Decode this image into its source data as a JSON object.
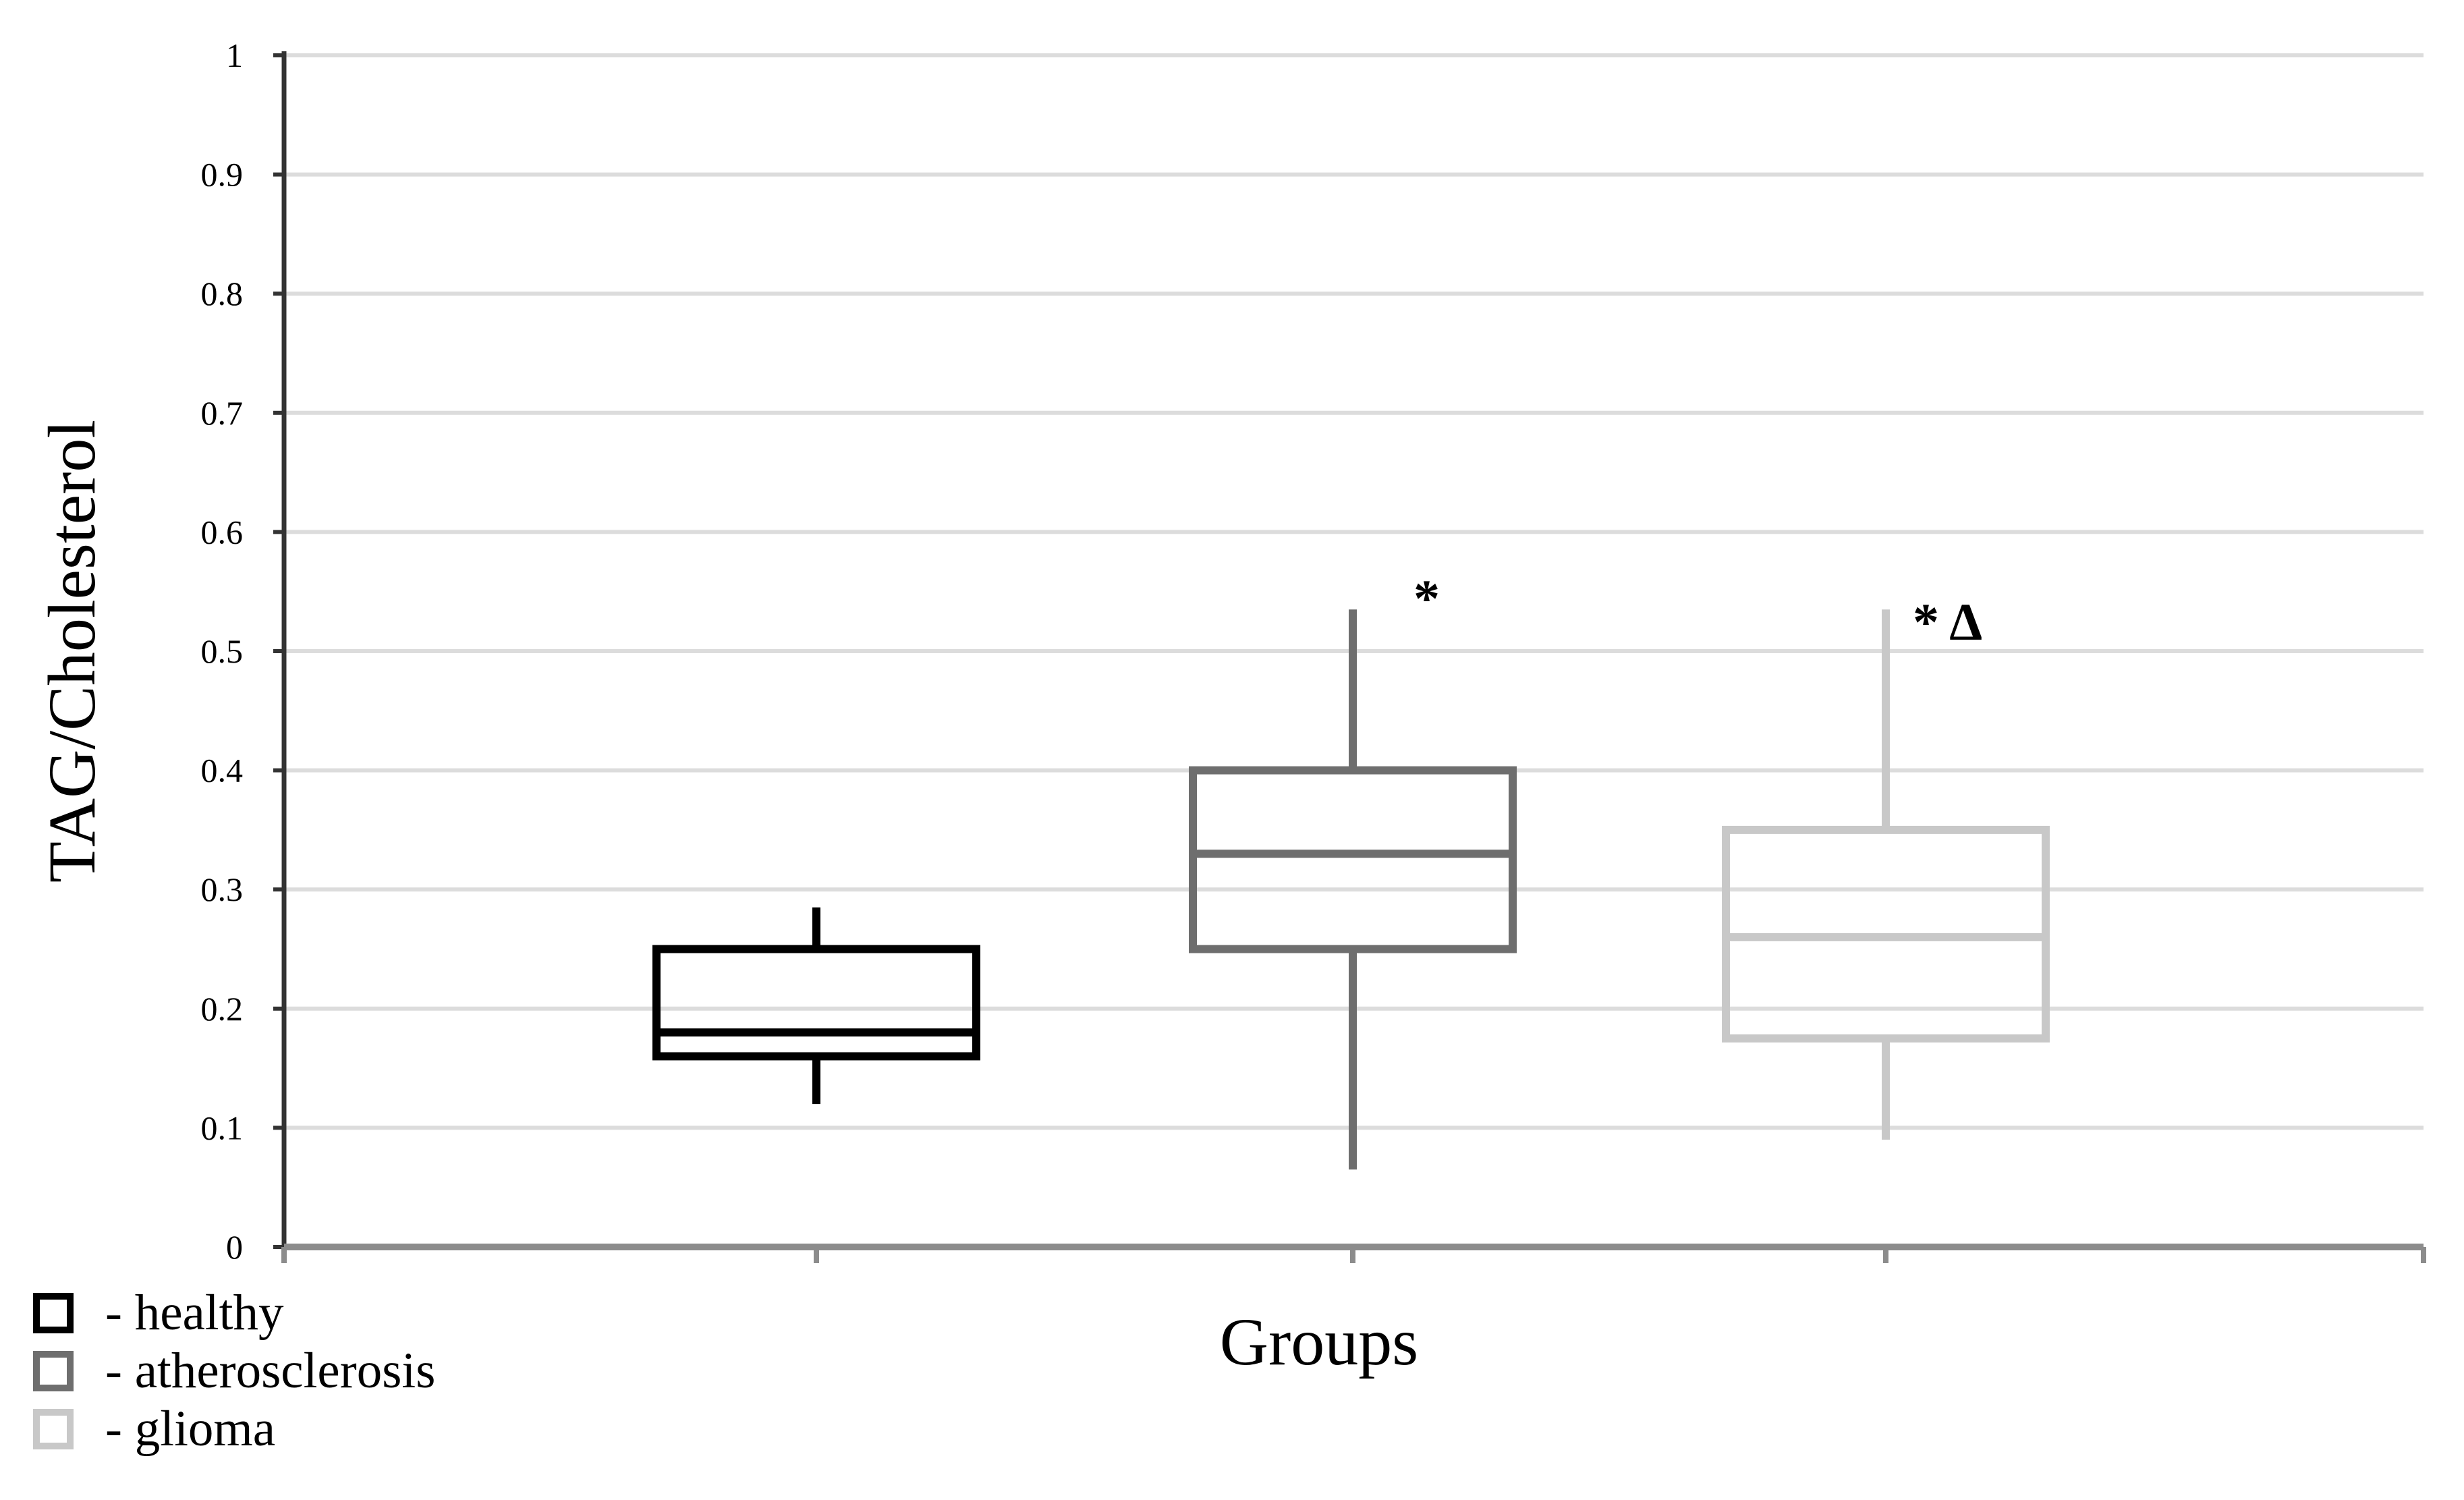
{
  "chart_data": {
    "type": "box",
    "xlabel": "Groups",
    "ylabel": "TAG/Cholesterol",
    "ylim": [
      0,
      1
    ],
    "yticks": [
      "0",
      "0.1",
      "0.2",
      "0.3",
      "0.4",
      "0.5",
      "0.6",
      "0.7",
      "0.8",
      "0.9",
      "1"
    ],
    "grid": true,
    "legend_position": "bottom-left",
    "series": [
      {
        "name": "healthy",
        "color": "#000000",
        "min": 0.12,
        "q1": 0.16,
        "median": 0.18,
        "q3": 0.25,
        "max": 0.285,
        "annotation": ""
      },
      {
        "name": "atherosclerosis",
        "color": "#6e6e6e",
        "min": 0.065,
        "q1": 0.25,
        "median": 0.33,
        "q3": 0.4,
        "max": 0.535,
        "annotation": "*"
      },
      {
        "name": "glioma",
        "color": "#c8c8c8",
        "min": 0.09,
        "q1": 0.175,
        "median": 0.26,
        "q3": 0.35,
        "max": 0.535,
        "annotation": "* Δ"
      }
    ]
  },
  "legend": {
    "items": [
      {
        "label": "- healthy",
        "color": "#000000"
      },
      {
        "label": "- atherosclerosis",
        "color": "#6e6e6e"
      },
      {
        "label": "- glioma",
        "color": "#c8c8c8"
      }
    ]
  }
}
